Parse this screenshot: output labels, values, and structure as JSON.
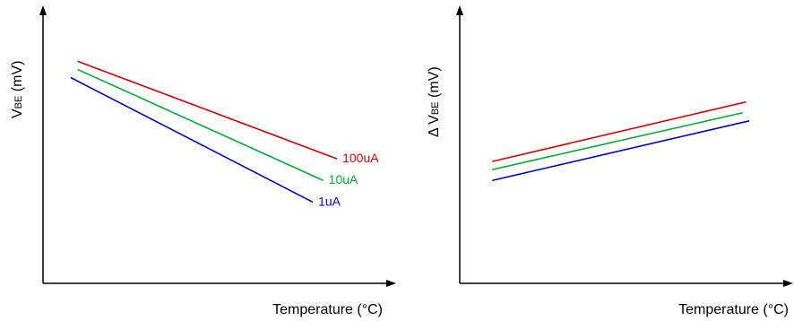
{
  "chart_data": [
    {
      "type": "line",
      "xlabel": "Temperature (°C)",
      "ylabel_main": "V",
      "ylabel_sub": "BE",
      "ylabel_unit": " (mV)",
      "xlim": [
        0,
        100
      ],
      "ylim": [
        0,
        100
      ],
      "grid": false,
      "series": [
        {
          "name": "100uA",
          "color": "#e00000",
          "x": [
            10,
            85
          ],
          "y": [
            82,
            46
          ]
        },
        {
          "name": "10uA",
          "color": "#00b030",
          "x": [
            10,
            81
          ],
          "y": [
            79,
            38
          ]
        },
        {
          "name": "1uA",
          "color": "#0000dd",
          "x": [
            8,
            78
          ],
          "y": [
            76,
            30
          ]
        }
      ]
    },
    {
      "type": "line",
      "xlabel": "Temperature (°C)",
      "ylabel_prefix": "Δ ",
      "ylabel_main": "V",
      "ylabel_sub": "BE",
      "ylabel_unit": " (mV)",
      "xlim": [
        0,
        100
      ],
      "ylim": [
        0,
        100
      ],
      "grid": false,
      "series": [
        {
          "color": "#e00000",
          "x": [
            10,
            88
          ],
          "y": [
            45,
            67
          ]
        },
        {
          "color": "#00b030",
          "x": [
            10,
            87
          ],
          "y": [
            42,
            63
          ]
        },
        {
          "color": "#0000dd",
          "x": [
            10,
            89
          ],
          "y": [
            38,
            60
          ]
        }
      ]
    }
  ]
}
